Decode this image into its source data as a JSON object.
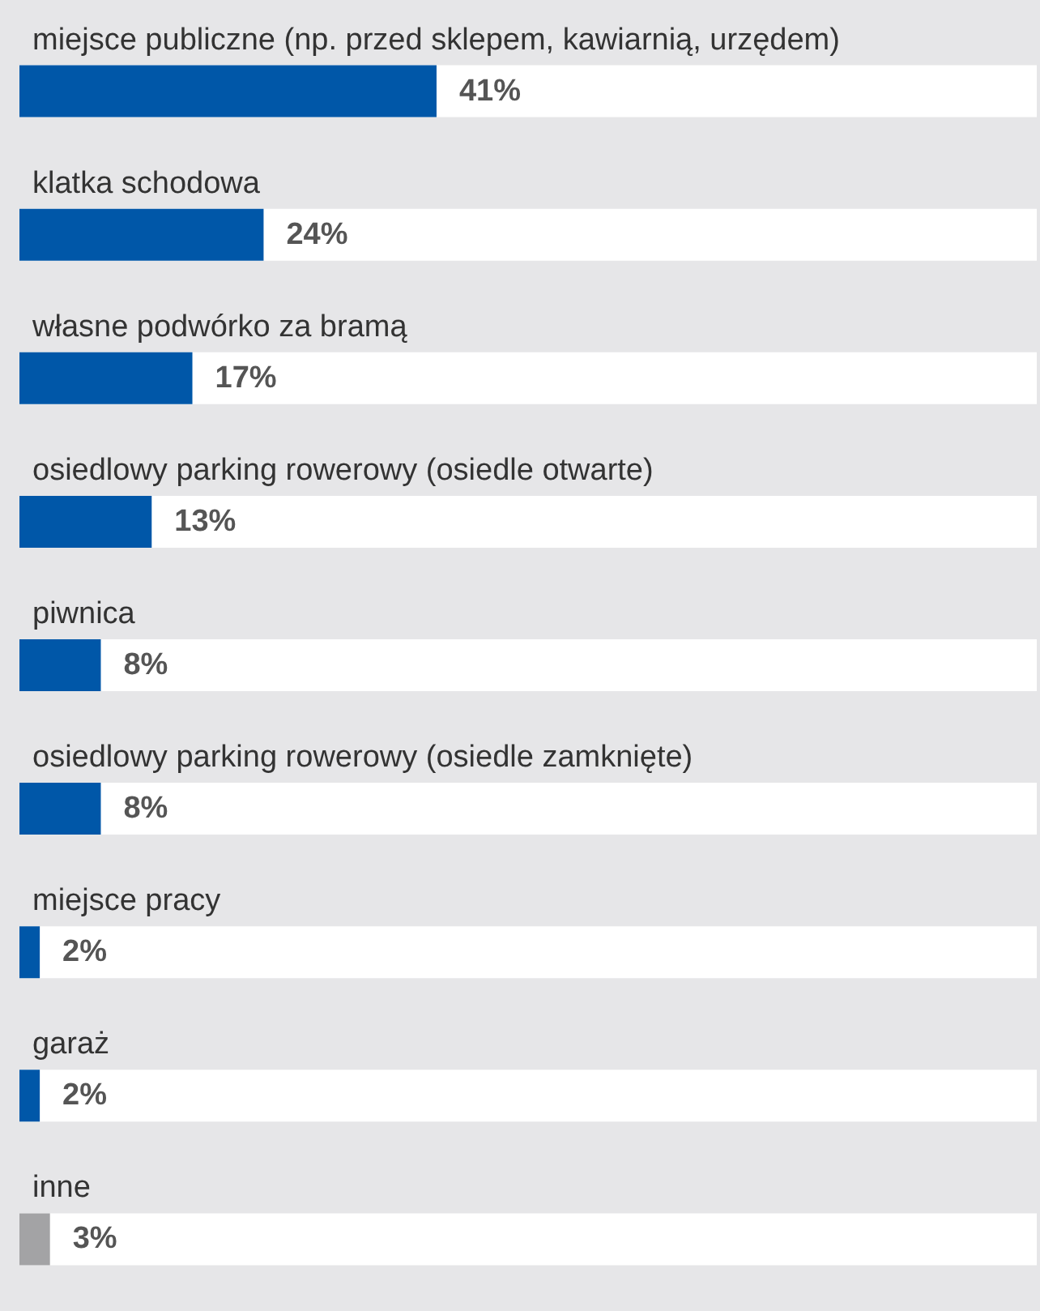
{
  "chart_data": {
    "type": "bar",
    "orientation": "horizontal",
    "categories": [
      "miejsce publiczne (np. przed sklepem, kawiarnią, urzędem)",
      "klatka schodowa",
      "własne podwórko za bramą",
      "osiedlowy parking rowerowy (osiedle otwarte)",
      "piwnica",
      "osiedlowy parking rowerowy (osiedle zamknięte)",
      "miejsce pracy",
      "garaż",
      "inne"
    ],
    "values": [
      41,
      24,
      17,
      13,
      8,
      8,
      2,
      2,
      3
    ],
    "value_labels": [
      "41%",
      "24%",
      "17%",
      "13%",
      "8%",
      "8%",
      "2%",
      "2%",
      "3%"
    ],
    "colors": [
      "#0057a8",
      "#0057a8",
      "#0057a8",
      "#0057a8",
      "#0057a8",
      "#0057a8",
      "#0057a8",
      "#0057a8",
      "#a3a3a5"
    ],
    "xlim": [
      0,
      100
    ],
    "tick_labels": "y"
  }
}
